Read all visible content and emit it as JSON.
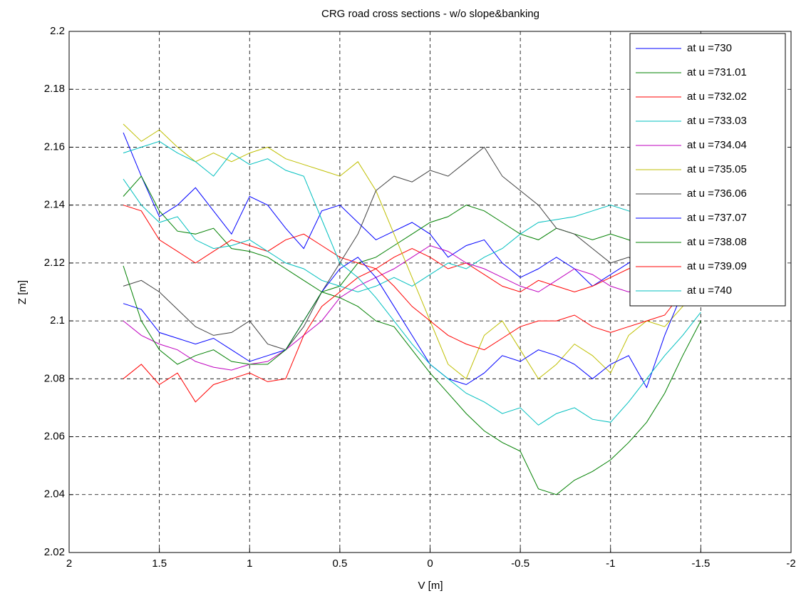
{
  "chart_data": {
    "type": "line",
    "title": "CRG road cross sections - w/o slope&banking",
    "x_label": "V [m]",
    "y_label": "Z [m]",
    "xlim": [
      2,
      -2
    ],
    "xticks": [
      2,
      1.5,
      1,
      0.5,
      0,
      -0.5,
      -1,
      -1.5,
      -2
    ],
    "ylim": [
      2.02,
      2.2
    ],
    "yticks": [
      2.02,
      2.04,
      2.06,
      2.08,
      2.1,
      2.12,
      2.14,
      2.16,
      2.18,
      2.2
    ],
    "grid": true,
    "legend": "top-right",
    "x": [
      1.7,
      1.6,
      1.5,
      1.4,
      1.3,
      1.2,
      1.1,
      1.0,
      0.9,
      0.8,
      0.7,
      0.6,
      0.5,
      0.4,
      0.3,
      0.2,
      0.1,
      0,
      -0.1,
      -0.2,
      -0.3,
      -0.4,
      -0.5,
      -0.6,
      -0.7,
      -0.8,
      -0.9,
      -1.0,
      -1.1,
      -1.2,
      -1.3,
      -1.4,
      -1.5
    ],
    "series": [
      {
        "name": "at u =730",
        "color": "#0000ff",
        "values": [
          2.165,
          2.15,
          2.136,
          2.14,
          2.146,
          2.138,
          2.13,
          2.143,
          2.14,
          2.132,
          2.125,
          2.138,
          2.14,
          2.134,
          2.128,
          2.131,
          2.134,
          2.13,
          2.122,
          2.126,
          2.128,
          2.12,
          2.115,
          2.118,
          2.122,
          2.118,
          2.112,
          2.116,
          2.12,
          2.124,
          2.118,
          2.126,
          2.132
        ]
      },
      {
        "name": "at u =731.01",
        "color": "#008000",
        "values": [
          2.143,
          2.15,
          2.138,
          2.131,
          2.13,
          2.132,
          2.125,
          2.124,
          2.122,
          2.118,
          2.114,
          2.11,
          2.112,
          2.12,
          2.122,
          2.126,
          2.13,
          2.134,
          2.136,
          2.14,
          2.138,
          2.134,
          2.13,
          2.128,
          2.132,
          2.13,
          2.128,
          2.13,
          2.128,
          2.125,
          2.12,
          2.128,
          2.134
        ]
      },
      {
        "name": "at u =732.02",
        "color": "#ff0000",
        "values": [
          2.14,
          2.138,
          2.128,
          2.124,
          2.12,
          2.124,
          2.128,
          2.126,
          2.124,
          2.128,
          2.13,
          2.126,
          2.122,
          2.12,
          2.118,
          2.122,
          2.125,
          2.122,
          2.118,
          2.12,
          2.116,
          2.112,
          2.11,
          2.114,
          2.112,
          2.11,
          2.112,
          2.115,
          2.118,
          2.12,
          2.122,
          2.118,
          2.114
        ]
      },
      {
        "name": "at u =733.03",
        "color": "#00bfbf",
        "values": [
          2.149,
          2.14,
          2.134,
          2.136,
          2.128,
          2.125,
          2.126,
          2.128,
          2.124,
          2.12,
          2.118,
          2.114,
          2.112,
          2.11,
          2.112,
          2.115,
          2.112,
          2.116,
          2.12,
          2.118,
          2.122,
          2.125,
          2.13,
          2.134,
          2.135,
          2.136,
          2.138,
          2.14,
          2.138,
          2.136,
          2.14,
          2.135,
          2.13
        ]
      },
      {
        "name": "at u =734.04",
        "color": "#bf00bf",
        "values": [
          2.1,
          2.095,
          2.092,
          2.09,
          2.086,
          2.084,
          2.083,
          2.085,
          2.086,
          2.09,
          2.095,
          2.1,
          2.108,
          2.112,
          2.115,
          2.118,
          2.122,
          2.126,
          2.124,
          2.12,
          2.118,
          2.115,
          2.112,
          2.11,
          2.114,
          2.118,
          2.116,
          2.112,
          2.11,
          2.112,
          2.114,
          2.116,
          2.118
        ]
      },
      {
        "name": "at u =735.05",
        "color": "#bfbf00",
        "values": [
          2.168,
          2.162,
          2.166,
          2.16,
          2.155,
          2.158,
          2.155,
          2.158,
          2.16,
          2.156,
          2.154,
          2.152,
          2.15,
          2.155,
          2.145,
          2.13,
          2.115,
          2.1,
          2.085,
          2.08,
          2.095,
          2.1,
          2.09,
          2.08,
          2.085,
          2.092,
          2.088,
          2.082,
          2.095,
          2.1,
          2.098,
          2.105,
          2.115
        ]
      },
      {
        "name": "at u =736.06",
        "color": "#404040",
        "values": [
          2.112,
          2.114,
          2.11,
          2.104,
          2.098,
          2.095,
          2.096,
          2.1,
          2.092,
          2.09,
          2.098,
          2.11,
          2.12,
          2.13,
          2.145,
          2.15,
          2.148,
          2.152,
          2.15,
          2.155,
          2.16,
          2.15,
          2.145,
          2.14,
          2.132,
          2.13,
          2.125,
          2.12,
          2.122,
          2.118,
          2.115,
          2.12,
          2.125
        ]
      },
      {
        "name": "at u =737.07",
        "color": "#0000ff",
        "values": [
          2.106,
          2.104,
          2.096,
          2.094,
          2.092,
          2.094,
          2.09,
          2.086,
          2.088,
          2.09,
          2.1,
          2.11,
          2.118,
          2.122,
          2.115,
          2.105,
          2.095,
          2.085,
          2.08,
          2.078,
          2.082,
          2.088,
          2.086,
          2.09,
          2.088,
          2.085,
          2.08,
          2.085,
          2.088,
          2.077,
          2.095,
          2.11,
          2.115
        ]
      },
      {
        "name": "at u =738.08",
        "color": "#008000",
        "values": [
          2.119,
          2.1,
          2.09,
          2.085,
          2.088,
          2.09,
          2.086,
          2.085,
          2.085,
          2.09,
          2.1,
          2.11,
          2.108,
          2.105,
          2.1,
          2.098,
          2.09,
          2.082,
          2.075,
          2.068,
          2.062,
          2.058,
          2.055,
          2.042,
          2.04,
          2.045,
          2.048,
          2.052,
          2.058,
          2.065,
          2.075,
          2.088,
          2.1
        ]
      },
      {
        "name": "at u =739.09",
        "color": "#ff0000",
        "values": [
          2.08,
          2.085,
          2.078,
          2.082,
          2.072,
          2.078,
          2.08,
          2.082,
          2.079,
          2.08,
          2.095,
          2.105,
          2.11,
          2.115,
          2.118,
          2.112,
          2.105,
          2.1,
          2.095,
          2.092,
          2.09,
          2.094,
          2.098,
          2.1,
          2.1,
          2.102,
          2.098,
          2.096,
          2.098,
          2.1,
          2.102,
          2.11,
          2.112
        ]
      },
      {
        "name": "at u =740",
        "color": "#00bfbf",
        "values": [
          2.158,
          2.16,
          2.162,
          2.158,
          2.155,
          2.15,
          2.158,
          2.154,
          2.156,
          2.152,
          2.15,
          2.135,
          2.12,
          2.115,
          2.108,
          2.1,
          2.092,
          2.085,
          2.08,
          2.075,
          2.072,
          2.068,
          2.07,
          2.064,
          2.068,
          2.07,
          2.066,
          2.065,
          2.072,
          2.08,
          2.088,
          2.095,
          2.103
        ]
      }
    ]
  }
}
